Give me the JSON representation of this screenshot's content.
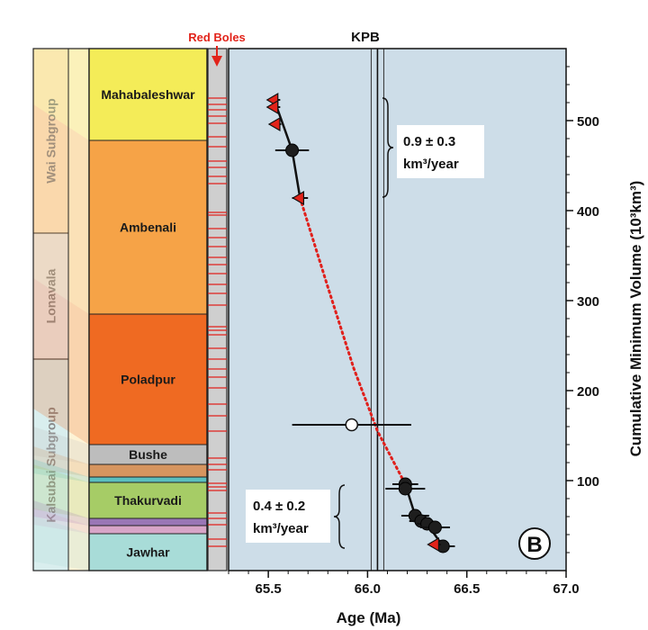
{
  "chart_data": {
    "type": "scatter",
    "panel_label": "B",
    "xlabel": "Age (Ma)",
    "ylabel": "Cumulative Minimum Volume (10³km³)",
    "xlim": [
      65.3,
      67.0
    ],
    "ylim": [
      0,
      580
    ],
    "x_ticks": [
      "65.5",
      "66.0",
      "66.5",
      "67.0"
    ],
    "y_ticks": [
      "100",
      "200",
      "300",
      "400",
      "500"
    ],
    "kpb": {
      "label": "KPB",
      "age": 66.05
    },
    "red_boles_label": "Red Boles",
    "formations": [
      {
        "name": "Mahabaleshwar",
        "label": "Mahabaleshwar",
        "top": 580,
        "bottom": 478,
        "color": "#f4ec58"
      },
      {
        "name": "Ambenali",
        "label": "Ambenali",
        "top": 478,
        "bottom": 285,
        "color": "#f6a347"
      },
      {
        "name": "Poladpur",
        "label": "Poladpur",
        "top": 285,
        "bottom": 140,
        "color": "#ef6a22"
      },
      {
        "name": "Bushe",
        "label": "Bushe",
        "top": 140,
        "bottom": 118,
        "color": "#bdbdbd"
      },
      {
        "name": "Bushe-lower",
        "label": "",
        "top": 118,
        "bottom": 104,
        "color": "#d6955f"
      },
      {
        "name": "teal-thin",
        "label": "",
        "top": 104,
        "bottom": 98,
        "color": "#5bbfbf"
      },
      {
        "name": "Thakurvadi",
        "label": "Thakurvadi",
        "top": 98,
        "bottom": 58,
        "color": "#a6cc66"
      },
      {
        "name": "purple-thin",
        "label": "",
        "top": 58,
        "bottom": 50,
        "color": "#9a77b6"
      },
      {
        "name": "pink-thin",
        "label": "",
        "top": 50,
        "bottom": 41,
        "color": "#d8a5c8"
      },
      {
        "name": "Jawhar",
        "label": "Jawhar",
        "top": 41,
        "bottom": 0,
        "color": "#a8dcd8"
      }
    ],
    "subgroups": [
      {
        "name": "Wai Subgroup",
        "top": 580,
        "bottom": 375
      },
      {
        "name": "Lonavala",
        "top": 375,
        "bottom": 235
      },
      {
        "name": "Kalsubai Subgroup",
        "top": 235,
        "bottom": 0
      }
    ],
    "red_boles_volumes": [
      525,
      518,
      512,
      505,
      497,
      482,
      471,
      455,
      448,
      438,
      430,
      398,
      395,
      380,
      370,
      360,
      348,
      340,
      330,
      318,
      308,
      295,
      271,
      267,
      262,
      247,
      235,
      224,
      215,
      203,
      185,
      172,
      155,
      125,
      118,
      112,
      97,
      93,
      89,
      64,
      58,
      51,
      35,
      27
    ],
    "series": [
      {
        "marker": "filled-circle",
        "points": [
          {
            "x": 65.62,
            "y": 467,
            "xerr": 0.085
          },
          {
            "x": 66.19,
            "y": 96,
            "xerr": 0.065
          },
          {
            "x": 66.19,
            "y": 91,
            "xerr": 0.1
          },
          {
            "x": 66.24,
            "y": 61,
            "xerr": 0.07
          },
          {
            "x": 66.27,
            "y": 55,
            "xerr": 0.06
          },
          {
            "x": 66.3,
            "y": 52,
            "xerr": 0.055
          },
          {
            "x": 66.34,
            "y": 48,
            "xerr": 0.075
          },
          {
            "x": 66.38,
            "y": 27,
            "xerr": 0.06
          }
        ]
      },
      {
        "marker": "open-circle",
        "points": [
          {
            "x": 65.92,
            "y": 162,
            "xerr": 0.3
          }
        ]
      },
      {
        "marker": "red-triangle",
        "points": [
          {
            "x": 65.53,
            "y": 523,
            "xerr": 0.03
          },
          {
            "x": 65.53,
            "y": 515,
            "xerr": 0.03
          },
          {
            "x": 65.54,
            "y": 496,
            "xerr": 0.025
          },
          {
            "x": 65.66,
            "y": 414,
            "xerr": 0.04
          },
          {
            "x": 66.34,
            "y": 29,
            "xerr": 0.03
          }
        ]
      }
    ],
    "fit_upper": [
      [
        65.53,
        523
      ],
      [
        65.62,
        467
      ],
      [
        65.66,
        414
      ]
    ],
    "fit_lower": [
      [
        66.19,
        96
      ],
      [
        66.24,
        61
      ],
      [
        66.3,
        52
      ],
      [
        66.38,
        27
      ]
    ],
    "dotted_connector": [
      [
        65.66,
        414
      ],
      [
        65.8,
        315
      ],
      [
        65.93,
        225
      ],
      [
        66.05,
        155
      ],
      [
        66.19,
        96
      ]
    ],
    "rates": [
      {
        "value": "0.9 ± 0.3",
        "unit": "km³/year",
        "y_top": 525,
        "y_bottom": 415
      },
      {
        "value": "0.4 ± 0.2",
        "unit": "km³/year",
        "y_top": 95,
        "y_bottom": 25
      }
    ]
  }
}
